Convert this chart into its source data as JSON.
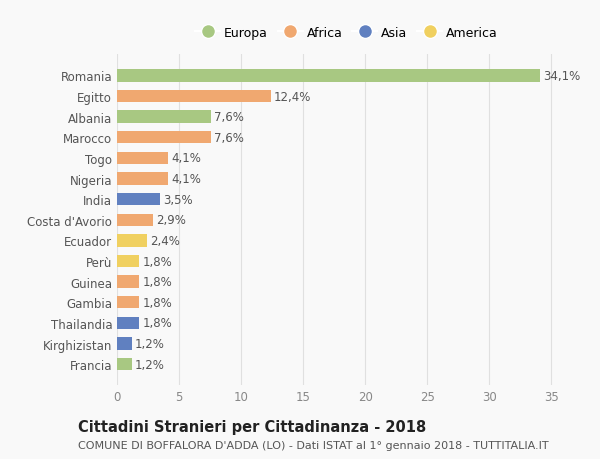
{
  "categories": [
    "Romania",
    "Egitto",
    "Albania",
    "Marocco",
    "Togo",
    "Nigeria",
    "India",
    "Costa d'Avorio",
    "Ecuador",
    "Perù",
    "Guinea",
    "Gambia",
    "Thailandia",
    "Kirghizistan",
    "Francia"
  ],
  "values": [
    34.1,
    12.4,
    7.6,
    7.6,
    4.1,
    4.1,
    3.5,
    2.9,
    2.4,
    1.8,
    1.8,
    1.8,
    1.8,
    1.2,
    1.2
  ],
  "labels": [
    "34,1%",
    "12,4%",
    "7,6%",
    "7,6%",
    "4,1%",
    "4,1%",
    "3,5%",
    "2,9%",
    "2,4%",
    "1,8%",
    "1,8%",
    "1,8%",
    "1,8%",
    "1,2%",
    "1,2%"
  ],
  "colors": [
    "#a8c882",
    "#f0a870",
    "#a8c882",
    "#f0a870",
    "#f0a870",
    "#f0a870",
    "#6080c0",
    "#f0a870",
    "#f0d060",
    "#f0d060",
    "#f0a870",
    "#f0a870",
    "#6080c0",
    "#6080c0",
    "#a8c882"
  ],
  "legend_labels": [
    "Europa",
    "Africa",
    "Asia",
    "America"
  ],
  "legend_colors": [
    "#a8c882",
    "#f0a870",
    "#6080c0",
    "#f0d060"
  ],
  "title": "Cittadini Stranieri per Cittadinanza - 2018",
  "subtitle": "COMUNE DI BOFFALORA D'ADDA (LO) - Dati ISTAT al 1° gennaio 2018 - TUTTITALIA.IT",
  "xlim": [
    0,
    37
  ],
  "xticks": [
    0,
    5,
    10,
    15,
    20,
    25,
    30,
    35
  ],
  "background_color": "#f9f9f9",
  "grid_color": "#e0e0e0",
  "bar_height": 0.6,
  "label_fontsize": 8.5,
  "title_fontsize": 10.5,
  "subtitle_fontsize": 8,
  "tick_fontsize": 8.5,
  "ytick_fontsize": 8.5
}
